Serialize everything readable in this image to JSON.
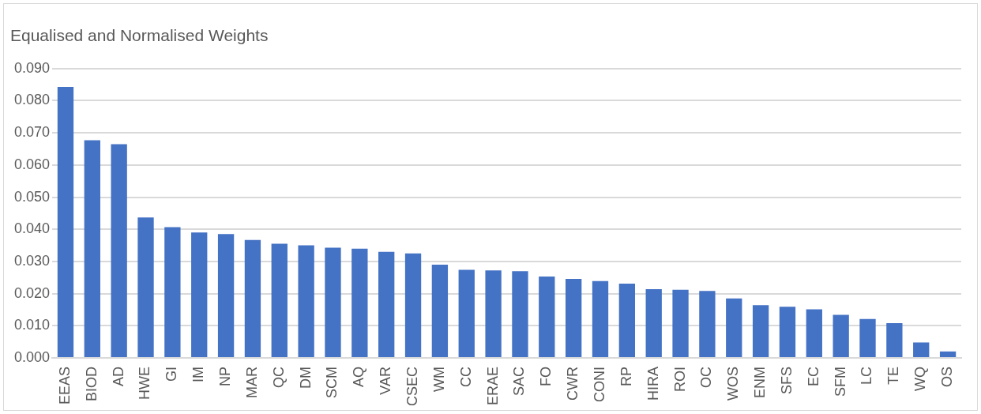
{
  "chart_data": {
    "type": "bar",
    "title": "Equalised and Normalised Weights",
    "categories": [
      "EEAS",
      "BIOD",
      "AD",
      "HWE",
      "GI",
      "IM",
      "NP",
      "MAR",
      "QC",
      "DM",
      "SCM",
      "AQ",
      "VAR",
      "CSEC",
      "WM",
      "CC",
      "ERAE",
      "SAC",
      "FO",
      "CWR",
      "CONI",
      "RP",
      "HIRA",
      "ROI",
      "OC",
      "WOS",
      "ENM",
      "SFS",
      "EC",
      "SFM",
      "LC",
      "TE",
      "WQ",
      "OS"
    ],
    "values": [
      0.0843,
      0.0677,
      0.0665,
      0.0437,
      0.0407,
      0.039,
      0.0385,
      0.0367,
      0.0355,
      0.035,
      0.0343,
      0.034,
      0.033,
      0.0325,
      0.029,
      0.0274,
      0.0272,
      0.027,
      0.0253,
      0.0246,
      0.0239,
      0.0231,
      0.0214,
      0.0212,
      0.0208,
      0.0185,
      0.0164,
      0.0159,
      0.0151,
      0.0134,
      0.0121,
      0.0108,
      0.0048,
      0.002
    ],
    "color": "#4472c4",
    "ylim": [
      0,
      0.09
    ],
    "yticks": [
      {
        "value": 0,
        "label": "0.000"
      },
      {
        "value": 0.01,
        "label": "0.010"
      },
      {
        "value": 0.02,
        "label": "0.020"
      },
      {
        "value": 0.03,
        "label": "0.030"
      },
      {
        "value": 0.04,
        "label": "0.040"
      },
      {
        "value": 0.05,
        "label": "0.050"
      },
      {
        "value": 0.06,
        "label": "0.060"
      },
      {
        "value": 0.07,
        "label": "0.070"
      },
      {
        "value": 0.08,
        "label": "0.080"
      },
      {
        "value": 0.09,
        "label": "0.090"
      }
    ],
    "grid": true
  }
}
